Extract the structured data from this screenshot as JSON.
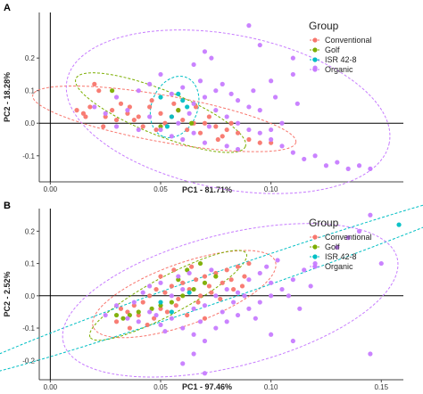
{
  "chart_data": [
    {
      "type": "scatter",
      "panel_label": "A",
      "xlabel": "PC1 - 81.71%",
      "ylabel": "PC2 - 18.28%",
      "xlim": [
        -0.005,
        0.16
      ],
      "ylim": [
        -0.18,
        0.34
      ],
      "x_ticks": [
        {
          "v": 0.0,
          "label": "0.00"
        },
        {
          "v": 0.05,
          "label": "0.05"
        },
        {
          "v": 0.1,
          "label": "0.10"
        }
      ],
      "y_ticks": [
        {
          "v": -0.1,
          "label": "-0.1"
        },
        {
          "v": 0.0,
          "label": "0.0"
        },
        {
          "v": 0.1,
          "label": "0.1"
        },
        {
          "v": 0.2,
          "label": "0.2"
        }
      ],
      "legend": {
        "title": "Group",
        "position": "top-right"
      },
      "series": [
        {
          "name": "Conventional",
          "color": "#F8766D",
          "points": [
            [
              0.02,
              0.12
            ],
            [
              0.022,
              0.1
            ],
            [
              0.018,
              0.05
            ],
            [
              0.015,
              0.03
            ],
            [
              0.025,
              0.02
            ],
            [
              0.03,
              0.01
            ],
            [
              0.035,
              0.03
            ],
            [
              0.04,
              0.02
            ],
            [
              0.045,
              0.05
            ],
            [
              0.05,
              0.03
            ],
            [
              0.055,
              0.02
            ],
            [
              0.06,
              0.01
            ],
            [
              0.065,
              0.0
            ],
            [
              0.07,
              0.0
            ],
            [
              0.075,
              -0.01
            ],
            [
              0.08,
              -0.02
            ],
            [
              0.085,
              -0.03
            ],
            [
              0.09,
              -0.05
            ],
            [
              0.095,
              -0.06
            ],
            [
              0.1,
              -0.06
            ],
            [
              0.038,
              0.01
            ],
            [
              0.042,
              -0.01
            ],
            [
              0.048,
              -0.02
            ],
            [
              0.052,
              0.0
            ],
            [
              0.058,
              0.04
            ],
            [
              0.062,
              -0.02
            ],
            [
              0.068,
              -0.03
            ],
            [
              0.072,
              0.02
            ],
            [
              0.078,
              -0.04
            ],
            [
              0.082,
              0.0
            ],
            [
              0.028,
              0.04
            ],
            [
              0.032,
              0.06
            ],
            [
              0.012,
              0.04
            ],
            [
              0.016,
              0.02
            ],
            [
              0.024,
              -0.01
            ],
            [
              0.036,
              0.05
            ],
            [
              0.046,
              0.07
            ],
            [
              0.056,
              0.06
            ],
            [
              0.066,
              0.05
            ],
            [
              0.076,
              -0.05
            ]
          ]
        },
        {
          "name": "Golf",
          "color": "#7CAE00",
          "points": [
            [
              0.028,
              0.1
            ],
            [
              0.058,
              0.04
            ],
            [
              0.064,
              0.0
            ],
            [
              0.05,
              -0.01
            ]
          ]
        },
        {
          "name": "ISR 42-8",
          "color": "#00BFC4",
          "points": [
            [
              0.05,
              0.08
            ],
            [
              0.053,
              -0.01
            ],
            [
              0.055,
              0.02
            ],
            [
              0.06,
              0.07
            ],
            [
              0.062,
              0.05
            ],
            [
              0.058,
              0.09
            ]
          ]
        },
        {
          "name": "Organic",
          "color": "#C77CFF",
          "points": [
            [
              0.02,
              0.05
            ],
            [
              0.03,
              0.08
            ],
            [
              0.04,
              0.1
            ],
            [
              0.045,
              0.12
            ],
            [
              0.05,
              0.15
            ],
            [
              0.055,
              0.09
            ],
            [
              0.06,
              0.11
            ],
            [
              0.065,
              0.06
            ],
            [
              0.07,
              0.08
            ],
            [
              0.075,
              0.04
            ],
            [
              0.08,
              0.02
            ],
            [
              0.085,
              0.0
            ],
            [
              0.09,
              -0.02
            ],
            [
              0.095,
              -0.03
            ],
            [
              0.1,
              -0.05
            ],
            [
              0.105,
              -0.07
            ],
            [
              0.11,
              -0.09
            ],
            [
              0.115,
              -0.11
            ],
            [
              0.12,
              -0.1
            ],
            [
              0.125,
              -0.13
            ],
            [
              0.13,
              -0.12
            ],
            [
              0.135,
              -0.14
            ],
            [
              0.14,
              -0.13
            ],
            [
              0.145,
              -0.14
            ],
            [
              0.1,
              0.13
            ],
            [
              0.11,
              0.15
            ],
            [
              0.12,
              0.17
            ],
            [
              0.09,
              0.3
            ],
            [
              0.095,
              0.24
            ],
            [
              0.11,
              0.2
            ],
            [
              0.073,
              0.2
            ],
            [
              0.07,
              0.22
            ],
            [
              0.065,
              0.18
            ],
            [
              0.045,
              0.02
            ],
            [
              0.05,
              -0.02
            ],
            [
              0.055,
              -0.04
            ],
            [
              0.06,
              -0.05
            ],
            [
              0.065,
              -0.03
            ],
            [
              0.07,
              -0.06
            ],
            [
              0.075,
              0.1
            ],
            [
              0.085,
              0.07
            ],
            [
              0.09,
              0.05
            ],
            [
              0.095,
              0.04
            ],
            [
              0.1,
              -0.02
            ],
            [
              0.105,
              0.0
            ],
            [
              0.035,
              0.04
            ],
            [
              0.04,
              -0.02
            ],
            [
              0.03,
              -0.01
            ],
            [
              0.025,
              0.03
            ],
            [
              0.08,
              -0.07
            ],
            [
              0.085,
              -0.08
            ],
            [
              0.078,
              0.12
            ],
            [
              0.068,
              0.13
            ],
            [
              0.058,
              0.0
            ],
            [
              0.063,
              0.03
            ],
            [
              0.072,
              -0.01
            ],
            [
              0.082,
              0.09
            ],
            [
              0.092,
              0.1
            ],
            [
              0.102,
              0.08
            ],
            [
              0.112,
              0.06
            ]
          ]
        }
      ]
    },
    {
      "type": "scatter",
      "panel_label": "B",
      "xlabel": "PC1 - 97.46%",
      "ylabel": "PC2 - 2.52%",
      "xlim": [
        -0.005,
        0.16
      ],
      "ylim": [
        -0.26,
        0.27
      ],
      "x_ticks": [
        {
          "v": 0.0,
          "label": "0.00"
        },
        {
          "v": 0.05,
          "label": "0.05"
        },
        {
          "v": 0.1,
          "label": "0.10"
        },
        {
          "v": 0.15,
          "label": "0.15"
        }
      ],
      "y_ticks": [
        {
          "v": -0.2,
          "label": "-0.2"
        },
        {
          "v": -0.1,
          "label": "-0.1"
        },
        {
          "v": 0.0,
          "label": "0.0"
        },
        {
          "v": 0.1,
          "label": "0.1"
        },
        {
          "v": 0.2,
          "label": "0.2"
        }
      ],
      "legend": {
        "title": "Group",
        "position": "top-right"
      },
      "series": [
        {
          "name": "Conventional",
          "color": "#F8766D",
          "points": [
            [
              0.03,
              -0.08
            ],
            [
              0.035,
              -0.05
            ],
            [
              0.038,
              -0.03
            ],
            [
              0.042,
              -0.02
            ],
            [
              0.045,
              0.0
            ],
            [
              0.048,
              0.02
            ],
            [
              0.05,
              -0.04
            ],
            [
              0.052,
              0.01
            ],
            [
              0.055,
              0.03
            ],
            [
              0.058,
              -0.01
            ],
            [
              0.06,
              0.04
            ],
            [
              0.063,
              0.02
            ],
            [
              0.066,
              0.05
            ],
            [
              0.068,
              0.0
            ],
            [
              0.07,
              0.06
            ],
            [
              0.072,
              0.03
            ],
            [
              0.075,
              0.07
            ],
            [
              0.078,
              0.04
            ],
            [
              0.08,
              0.08
            ],
            [
              0.082,
              0.05
            ],
            [
              0.085,
              0.09
            ],
            [
              0.088,
              0.06
            ],
            [
              0.09,
              0.1
            ],
            [
              0.04,
              -0.06
            ],
            [
              0.044,
              -0.09
            ],
            [
              0.047,
              -0.07
            ],
            [
              0.053,
              -0.05
            ],
            [
              0.057,
              -0.03
            ],
            [
              0.062,
              -0.06
            ],
            [
              0.067,
              -0.02
            ],
            [
              0.073,
              0.01
            ],
            [
              0.077,
              -0.01
            ],
            [
              0.083,
              0.02
            ],
            [
              0.087,
              0.03
            ],
            [
              0.032,
              -0.04
            ],
            [
              0.036,
              -0.1
            ],
            [
              0.05,
              0.06
            ],
            [
              0.056,
              0.08
            ],
            [
              0.064,
              0.09
            ],
            [
              0.07,
              -0.07
            ]
          ]
        },
        {
          "name": "Golf",
          "color": "#7CAE00",
          "points": [
            [
              0.03,
              -0.06
            ],
            [
              0.033,
              -0.07
            ],
            [
              0.036,
              -0.06
            ],
            [
              0.04,
              -0.05
            ],
            [
              0.05,
              -0.03
            ],
            [
              0.055,
              -0.02
            ],
            [
              0.06,
              0.0
            ],
            [
              0.065,
              0.02
            ],
            [
              0.07,
              0.04
            ],
            [
              0.075,
              0.06
            ],
            [
              0.062,
              0.08
            ],
            [
              0.058,
              0.05
            ],
            [
              0.046,
              -0.04
            ],
            [
              0.068,
              0.1
            ]
          ]
        },
        {
          "name": "ISR 42-8",
          "color": "#00BFC4",
          "points": [
            [
              0.158,
              0.22
            ],
            [
              0.05,
              -0.02
            ],
            [
              0.055,
              -0.05
            ],
            [
              0.063,
              0.01
            ]
          ]
        },
        {
          "name": "Organic",
          "color": "#C77CFF",
          "points": [
            [
              0.025,
              -0.06
            ],
            [
              0.03,
              -0.03
            ],
            [
              0.035,
              -0.07
            ],
            [
              0.04,
              -0.08
            ],
            [
              0.045,
              -0.05
            ],
            [
              0.05,
              -0.09
            ],
            [
              0.055,
              -0.07
            ],
            [
              0.06,
              -0.1
            ],
            [
              0.065,
              -0.12
            ],
            [
              0.07,
              -0.14
            ],
            [
              0.075,
              -0.1
            ],
            [
              0.08,
              -0.08
            ],
            [
              0.085,
              -0.06
            ],
            [
              0.09,
              -0.04
            ],
            [
              0.095,
              -0.02
            ],
            [
              0.1,
              0.0
            ],
            [
              0.105,
              0.02
            ],
            [
              0.11,
              0.05
            ],
            [
              0.115,
              0.08
            ],
            [
              0.12,
              0.1
            ],
            [
              0.13,
              0.15
            ],
            [
              0.135,
              0.18
            ],
            [
              0.14,
              0.2
            ],
            [
              0.145,
              0.25
            ],
            [
              0.15,
              0.1
            ],
            [
              0.145,
              -0.18
            ],
            [
              0.11,
              -0.14
            ],
            [
              0.1,
              -0.12
            ],
            [
              0.06,
              -0.21
            ],
            [
              0.065,
              -0.18
            ],
            [
              0.07,
              -0.24
            ],
            [
              0.045,
              0.03
            ],
            [
              0.05,
              0.04
            ],
            [
              0.055,
              0.0
            ],
            [
              0.06,
              0.02
            ],
            [
              0.065,
              -0.04
            ],
            [
              0.07,
              -0.03
            ],
            [
              0.075,
              0.0
            ],
            [
              0.08,
              0.02
            ],
            [
              0.085,
              0.01
            ],
            [
              0.09,
              0.05
            ],
            [
              0.095,
              0.07
            ],
            [
              0.1,
              0.04
            ],
            [
              0.038,
              -0.02
            ],
            [
              0.042,
              0.01
            ],
            [
              0.048,
              -0.06
            ],
            [
              0.052,
              -0.11
            ],
            [
              0.058,
              0.06
            ],
            [
              0.063,
              0.07
            ],
            [
              0.068,
              -0.08
            ],
            [
              0.073,
              0.08
            ],
            [
              0.078,
              -0.05
            ],
            [
              0.083,
              -0.02
            ],
            [
              0.088,
              0.0
            ],
            [
              0.093,
              -0.07
            ],
            [
              0.098,
              0.09
            ],
            [
              0.103,
              0.11
            ],
            [
              0.108,
              0.0
            ],
            [
              0.113,
              -0.04
            ],
            [
              0.118,
              0.03
            ]
          ]
        }
      ]
    }
  ]
}
